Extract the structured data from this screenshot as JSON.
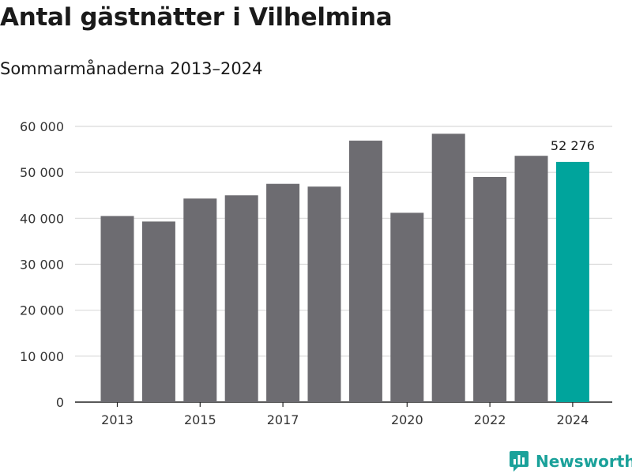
{
  "title": "Antal gästnätter i Vilhelmina",
  "subtitle": "Sommarmånaderna 2013–2024",
  "brand": {
    "name": "Newsworthy",
    "icon": "newsworthy-logo-icon",
    "color": "#1aa19a"
  },
  "colors": {
    "bar": "#6d6c71",
    "highlight": "#00a49c",
    "grid": "#d9d9d9",
    "axis": "#222222"
  },
  "chart_data": {
    "type": "bar",
    "categories": [
      "2013",
      "2014",
      "2015",
      "2016",
      "2017",
      "2018",
      "2019",
      "2020",
      "2021",
      "2022",
      "2023",
      "2024"
    ],
    "values": [
      40500,
      39300,
      44300,
      45000,
      47500,
      46900,
      56900,
      41200,
      58400,
      49000,
      53600,
      52276
    ],
    "highlight_index": 11,
    "x_tick_labels": [
      "2013",
      "2015",
      "2017",
      "2020",
      "2022",
      "2024"
    ],
    "y_tick_labels": [
      "0",
      "10 000",
      "20 000",
      "30 000",
      "40 000",
      "50 000",
      "60 000"
    ],
    "y_ticks": [
      0,
      10000,
      20000,
      30000,
      40000,
      50000,
      60000
    ],
    "ylim": [
      0,
      60000
    ],
    "data_labels": [
      {
        "index": 11,
        "text": "52 276"
      }
    ],
    "grid": true,
    "legend": "none",
    "xlabel": "",
    "ylabel": ""
  }
}
